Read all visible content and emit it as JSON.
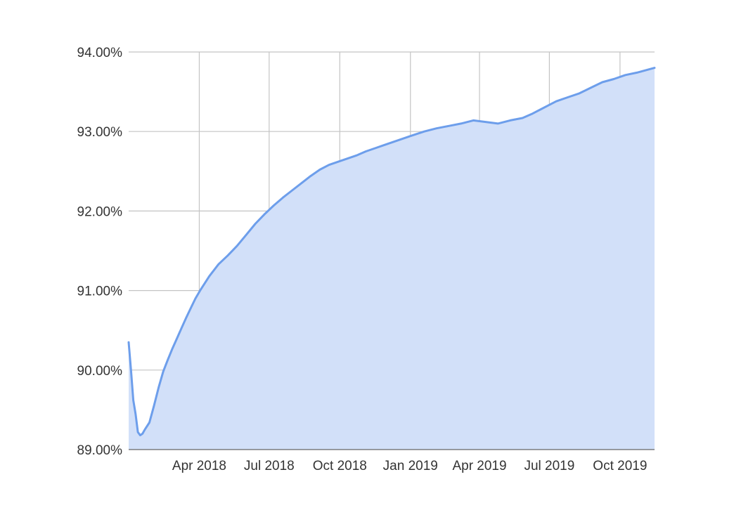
{
  "chart_data": {
    "type": "area",
    "title": "",
    "xlabel": "",
    "ylabel": "",
    "xlim": [
      "2017-12-30",
      "2019-11-15"
    ],
    "ylim": [
      89.0,
      94.0
    ],
    "grid": true,
    "y_ticks": [
      {
        "value": 89.0,
        "label": "89.00%"
      },
      {
        "value": 90.0,
        "label": "90.00%"
      },
      {
        "value": 91.0,
        "label": "91.00%"
      },
      {
        "value": 92.0,
        "label": "92.00%"
      },
      {
        "value": 93.0,
        "label": "93.00%"
      },
      {
        "value": 94.0,
        "label": "94.00%"
      }
    ],
    "x_ticks": [
      {
        "date": "2018-04-01",
        "label": "Apr 2018"
      },
      {
        "date": "2018-07-01",
        "label": "Jul 2018"
      },
      {
        "date": "2018-10-01",
        "label": "Oct 2018"
      },
      {
        "date": "2019-01-01",
        "label": "Jan 2019"
      },
      {
        "date": "2019-04-01",
        "label": "Apr 2019"
      },
      {
        "date": "2019-07-01",
        "label": "Jul 2019"
      },
      {
        "date": "2019-10-01",
        "label": "Oct 2019"
      }
    ],
    "series": [
      {
        "x": [
          "2017-12-30",
          "2018-01-02",
          "2018-01-05",
          "2018-01-08",
          "2018-01-11",
          "2018-01-14",
          "2018-01-17",
          "2018-01-20",
          "2018-01-26",
          "2018-02-01",
          "2018-02-07",
          "2018-02-13",
          "2018-02-19",
          "2018-02-25",
          "2018-03-03",
          "2018-03-09",
          "2018-03-15",
          "2018-03-21",
          "2018-03-27",
          "2018-04-02",
          "2018-04-14",
          "2018-04-26",
          "2018-05-08",
          "2018-05-20",
          "2018-06-01",
          "2018-06-13",
          "2018-06-25",
          "2018-07-07",
          "2018-07-19",
          "2018-07-31",
          "2018-08-12",
          "2018-08-24",
          "2018-09-05",
          "2018-09-17",
          "2018-09-29",
          "2018-10-11",
          "2018-10-23",
          "2018-11-04",
          "2018-11-16",
          "2018-11-28",
          "2018-12-10",
          "2018-12-22",
          "2019-01-03",
          "2019-01-19",
          "2019-02-04",
          "2019-02-20",
          "2019-03-08",
          "2019-03-24",
          "2019-04-09",
          "2019-04-25",
          "2019-05-11",
          "2019-05-27",
          "2019-06-08",
          "2019-06-20",
          "2019-06-30",
          "2019-07-10",
          "2019-07-25",
          "2019-08-09",
          "2019-08-24",
          "2019-09-08",
          "2019-09-23",
          "2019-10-08",
          "2019-10-23",
          "2019-11-07",
          "2019-11-15"
        ],
        "y": [
          90.35,
          90.0,
          89.62,
          89.45,
          89.22,
          89.18,
          89.2,
          89.25,
          89.34,
          89.55,
          89.78,
          89.98,
          90.13,
          90.27,
          90.4,
          90.53,
          90.66,
          90.78,
          90.9,
          91.0,
          91.18,
          91.33,
          91.44,
          91.56,
          91.7,
          91.84,
          91.96,
          92.07,
          92.17,
          92.26,
          92.35,
          92.44,
          92.52,
          92.58,
          92.62,
          92.66,
          92.7,
          92.75,
          92.79,
          92.83,
          92.87,
          92.91,
          92.95,
          93.0,
          93.04,
          93.07,
          93.1,
          93.14,
          93.12,
          93.1,
          93.14,
          93.17,
          93.22,
          93.28,
          93.33,
          93.38,
          93.43,
          93.48,
          93.55,
          93.62,
          93.66,
          93.71,
          93.74,
          93.78,
          93.8
        ],
        "color": "#6d9eeb",
        "fill": "#d2e0f9"
      }
    ]
  }
}
